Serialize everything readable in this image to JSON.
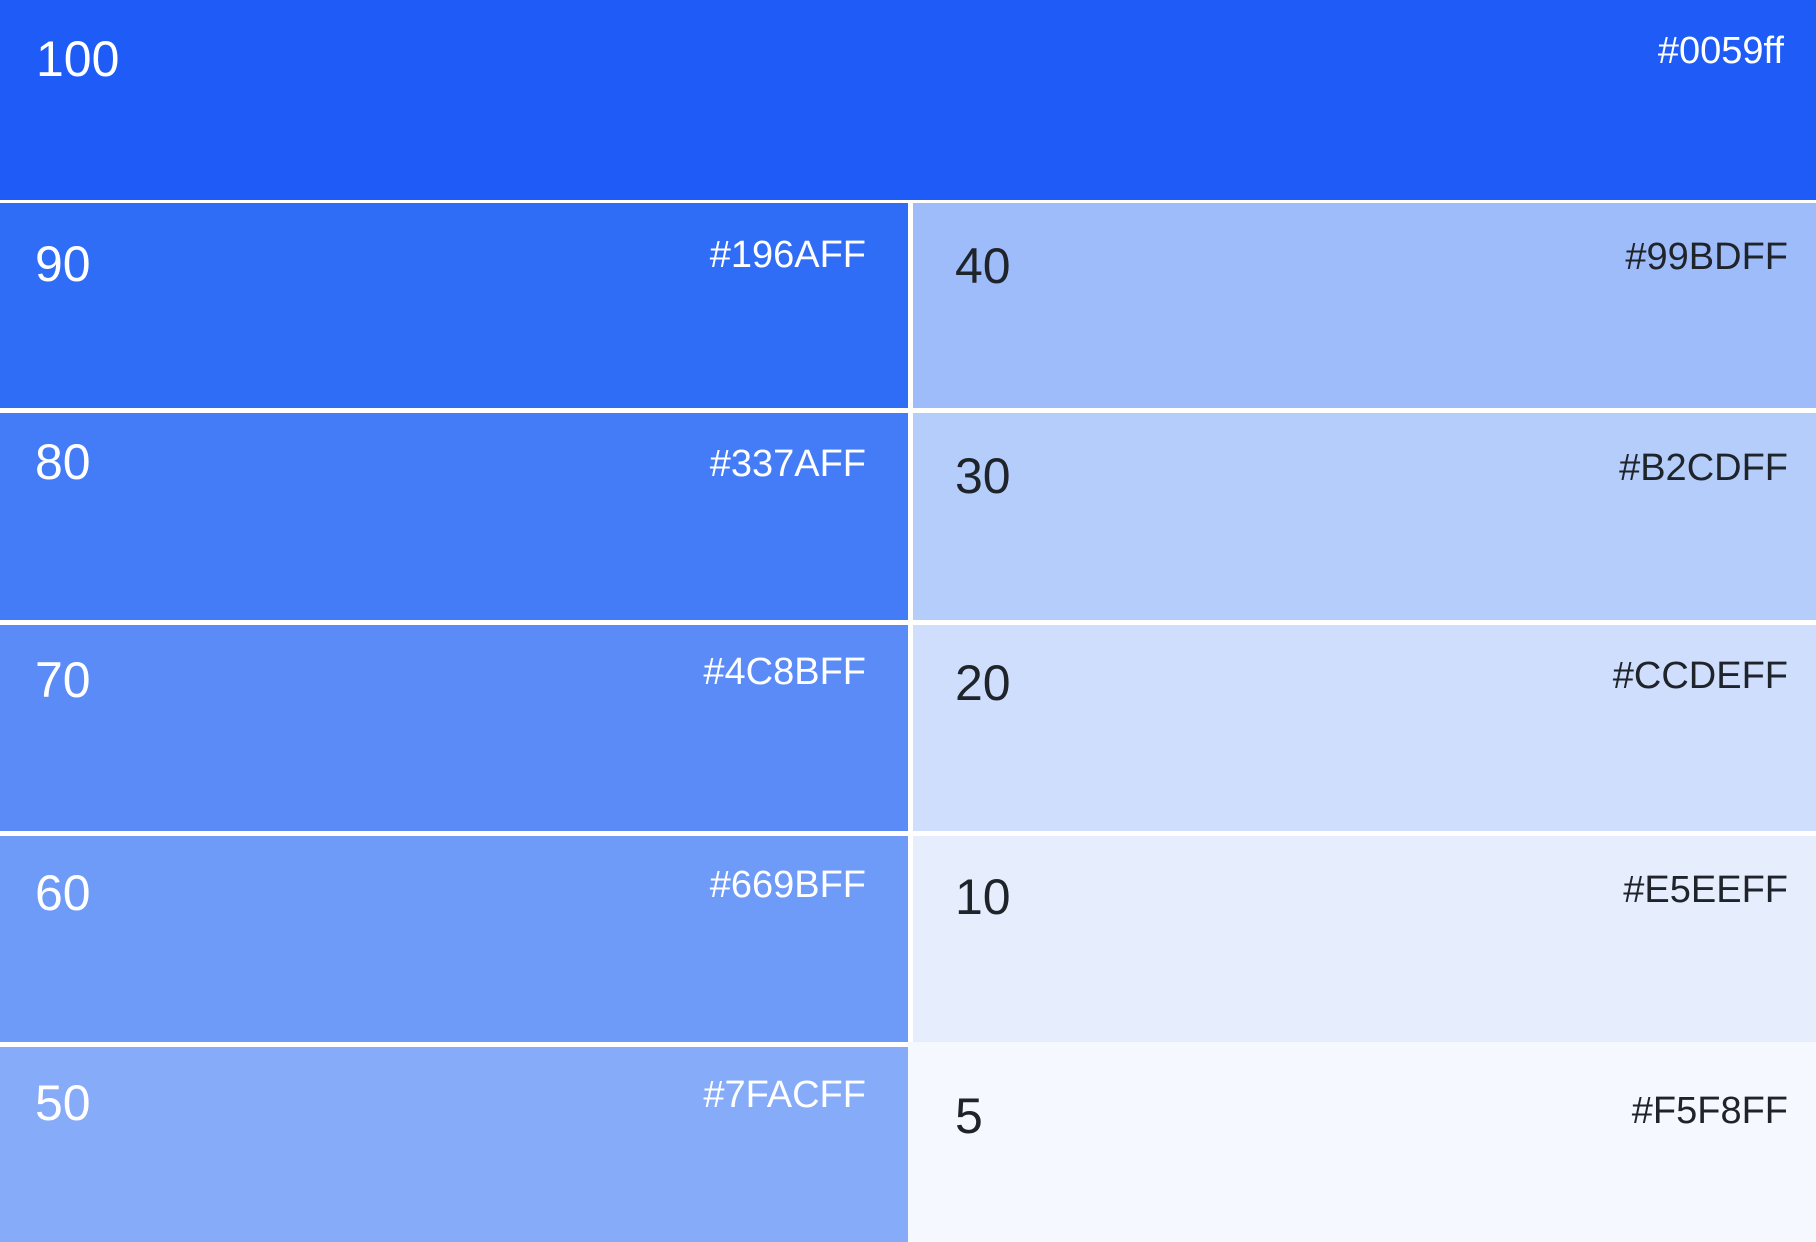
{
  "palette": {
    "swatches": {
      "s100": {
        "step": "100",
        "hex": "#0059ff",
        "fill": "#1f5cf7",
        "text_color": "#ffffff"
      },
      "s90": {
        "step": "90",
        "hex": "#196AFF",
        "fill": "#306df7",
        "text_color": "#ffffff"
      },
      "s80": {
        "step": "80",
        "hex": "#337AFF",
        "fill": "#447cf7",
        "text_color": "#ffffff"
      },
      "s70": {
        "step": "70",
        "hex": "#4C8BFF",
        "fill": "#5a8bf7",
        "text_color": "#ffffff"
      },
      "s60": {
        "step": "60",
        "hex": "#669BFF",
        "fill": "#6f9bf8",
        "text_color": "#ffffff"
      },
      "s50": {
        "step": "50",
        "hex": "#7FACFF",
        "fill": "#86abf9",
        "text_color": "#ffffff"
      },
      "s40": {
        "step": "40",
        "hex": "#99BDFF",
        "fill": "#9fbcfa",
        "text_color": "#1f232a"
      },
      "s30": {
        "step": "30",
        "hex": "#B2CDFF",
        "fill": "#b5cdfb",
        "text_color": "#1f232a"
      },
      "s20": {
        "step": "20",
        "hex": "#CCDEFF",
        "fill": "#cfdefc",
        "text_color": "#1f232a"
      },
      "s10": {
        "step": "10",
        "hex": "#E5EEFF",
        "fill": "#e6eefd",
        "text_color": "#1f232a"
      },
      "s5": {
        "step": "5",
        "hex": "#F5F8FF",
        "fill": "#f5f8fe",
        "text_color": "#1f232a"
      }
    }
  }
}
